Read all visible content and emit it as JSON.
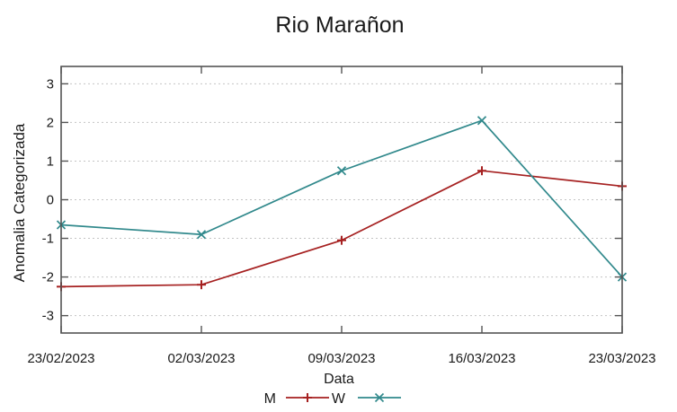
{
  "chart_data": {
    "type": "line",
    "title": "Rio Marañon",
    "xlabel": "Data",
    "ylabel": "Anomalia Categorizada",
    "categories": [
      "23/02/2023",
      "02/03/2023",
      "09/03/2023",
      "16/03/2023",
      "23/03/2023"
    ],
    "series": [
      {
        "name": "M",
        "color": "#a62121",
        "marker": "plus",
        "values": [
          -2.25,
          -2.2,
          -1.05,
          0.75,
          0.35
        ]
      },
      {
        "name": "W",
        "color": "#31898c",
        "marker": "cross",
        "values": [
          -0.65,
          -0.9,
          0.75,
          2.05,
          -2.0
        ]
      }
    ],
    "yticks": [
      -3,
      -2,
      -1,
      0,
      1,
      2,
      3
    ],
    "ylim": [
      -3.45,
      3.45
    ],
    "grid": true,
    "grid_style": "dotted-horizontal",
    "legend_position": "bottom-center",
    "colors": {
      "axis": "#545454",
      "grid": "#c4c4c4",
      "text": "#1a1a1a"
    }
  }
}
